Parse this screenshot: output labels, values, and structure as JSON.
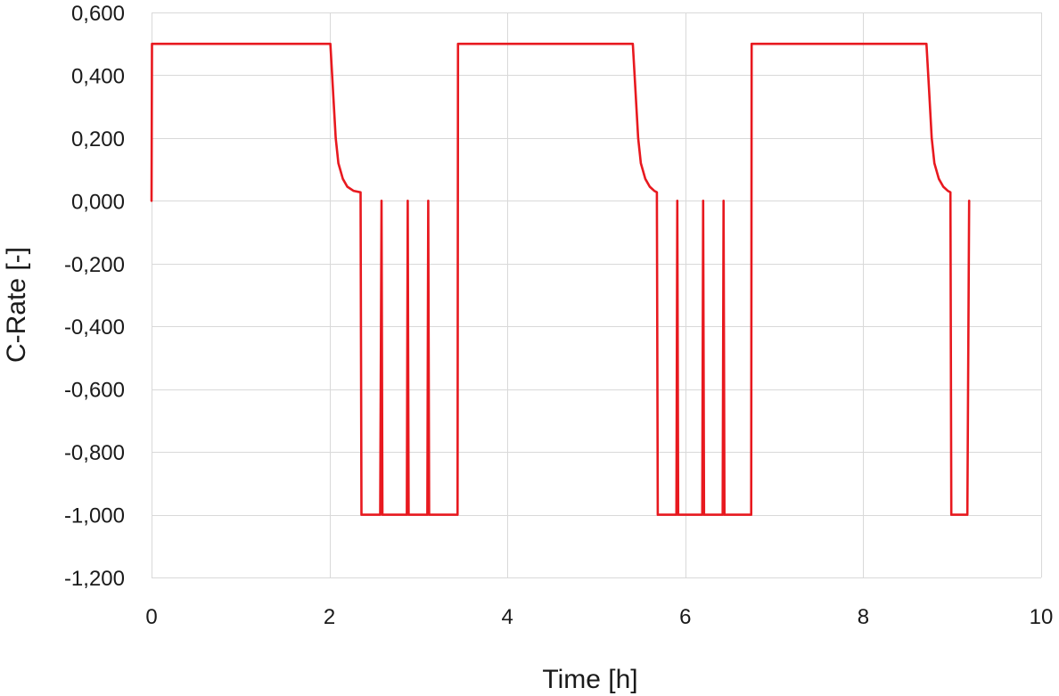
{
  "chart_data": {
    "type": "line",
    "title": "",
    "xlabel": "Time [h]",
    "ylabel": "C-Rate [-]",
    "xlim": [
      0,
      10
    ],
    "ylim": [
      -1.2,
      0.6
    ],
    "x_ticks": [
      0,
      2,
      4,
      6,
      8,
      10
    ],
    "x_tick_labels": [
      "0",
      "2",
      "4",
      "6",
      "8",
      "10"
    ],
    "y_ticks": [
      0.6,
      0.4,
      0.2,
      0.0,
      -0.2,
      -0.4,
      -0.6,
      -0.8,
      -1.0,
      -1.2
    ],
    "y_tick_labels": [
      "0,600",
      "0,400",
      "0,200",
      "0,000",
      "-0,200",
      "-0,400",
      "-0,600",
      "-0,800",
      "-1,000",
      "-1,200"
    ],
    "grid": true,
    "legend": "none",
    "series": [
      {
        "color": "#e8191f",
        "points": [
          [
            0.0,
            0.0
          ],
          [
            0.005,
            0.5
          ],
          [
            2.01,
            0.5
          ],
          [
            2.04,
            0.35
          ],
          [
            2.07,
            0.2
          ],
          [
            2.1,
            0.12
          ],
          [
            2.15,
            0.07
          ],
          [
            2.2,
            0.045
          ],
          [
            2.27,
            0.032
          ],
          [
            2.35,
            0.027
          ],
          [
            2.36,
            -1.0
          ],
          [
            2.57,
            -1.0
          ],
          [
            2.585,
            0.0
          ],
          [
            2.595,
            -1.0
          ],
          [
            2.87,
            -1.0
          ],
          [
            2.88,
            0.0
          ],
          [
            2.89,
            -1.0
          ],
          [
            3.1,
            -1.0
          ],
          [
            3.11,
            0.0
          ],
          [
            3.12,
            -1.0
          ],
          [
            3.44,
            -1.0
          ],
          [
            3.445,
            0.5
          ],
          [
            5.41,
            0.5
          ],
          [
            5.44,
            0.35
          ],
          [
            5.47,
            0.2
          ],
          [
            5.5,
            0.12
          ],
          [
            5.55,
            0.07
          ],
          [
            5.6,
            0.045
          ],
          [
            5.65,
            0.032
          ],
          [
            5.68,
            0.027
          ],
          [
            5.69,
            -1.0
          ],
          [
            5.9,
            -1.0
          ],
          [
            5.91,
            0.0
          ],
          [
            5.92,
            -1.0
          ],
          [
            6.19,
            -1.0
          ],
          [
            6.2,
            0.0
          ],
          [
            6.21,
            -1.0
          ],
          [
            6.42,
            -1.0
          ],
          [
            6.43,
            0.0
          ],
          [
            6.44,
            -1.0
          ],
          [
            6.74,
            -1.0
          ],
          [
            6.745,
            0.5
          ],
          [
            8.71,
            0.5
          ],
          [
            8.74,
            0.35
          ],
          [
            8.77,
            0.2
          ],
          [
            8.8,
            0.12
          ],
          [
            8.85,
            0.07
          ],
          [
            8.9,
            0.045
          ],
          [
            8.95,
            0.032
          ],
          [
            8.98,
            0.027
          ],
          [
            8.99,
            -1.0
          ],
          [
            9.17,
            -1.0
          ],
          [
            9.19,
            0.0
          ]
        ]
      }
    ]
  }
}
